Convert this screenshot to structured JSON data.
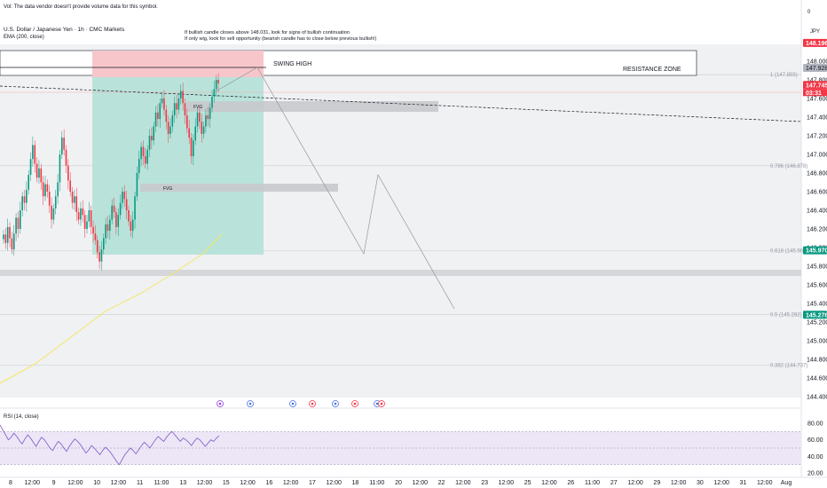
{
  "header": {
    "volume_notice": "Vol: The data vendor doesn't provide volume data for this symbol.",
    "symbol_title": "U.S. Dollar / Japanese Yen · 1h · CMC Markets",
    "ema_label": "EMA (200, close)",
    "note_line1": "If bullish candle closes above 148.031, look for signs of bullish continuation",
    "note_line2": "If only wig, look for sell opportunity (bearish candle has to close below previous bullish!)",
    "currency": "JPY",
    "top_axis_value": "0"
  },
  "annotations": {
    "swing_high": "SWING HIGH",
    "resistance_zone": "RESISTANCE ZONE",
    "fvg_upper": "FVG",
    "fvg_lower": "FVG"
  },
  "fib_levels": [
    {
      "label": "1 (147.855)",
      "price": 147.855
    },
    {
      "label": "0.786 (146.878)",
      "price": 146.878
    },
    {
      "label": "0.618 (145.969)",
      "price": 145.969
    },
    {
      "label": "0.5 (145.282)",
      "price": 145.282
    },
    {
      "label": "0.382 (144.737)",
      "price": 144.737
    }
  ],
  "price_tags": [
    {
      "text": "148.196",
      "price": 148.196,
      "color": "#f23645",
      "dark": false
    },
    {
      "text": "147.928",
      "price": 147.928,
      "color": "#b2b5be",
      "dark": true
    },
    {
      "text": "147.745",
      "price": 147.745,
      "color": "#f23645",
      "dark": false,
      "sub": "03:31"
    },
    {
      "text": "145.970",
      "price": 145.97,
      "color": "#089981",
      "dark": false
    },
    {
      "text": "145.278",
      "price": 145.278,
      "color": "#089981",
      "dark": false
    }
  ],
  "rsi": {
    "label": "RSI (14, close)",
    "ticks": [
      "80.00",
      "60.00",
      "40.00",
      "20.00"
    ],
    "levels": [
      80,
      60,
      40,
      20
    ],
    "upper_band": 70,
    "lower_band": 30,
    "values": [
      78,
      72,
      66,
      60,
      63,
      68,
      64,
      59,
      55,
      61,
      66,
      62,
      57,
      52,
      58,
      63,
      60,
      55,
      50,
      47,
      53,
      58,
      55,
      50,
      46,
      52,
      57,
      61,
      58,
      54,
      49,
      44,
      48,
      53,
      50,
      46,
      42,
      47,
      51,
      48,
      44,
      39,
      34,
      30,
      36,
      42,
      46,
      50,
      47,
      43,
      48,
      53,
      57,
      54,
      50,
      55,
      60,
      64,
      61,
      58,
      63,
      67,
      70,
      66,
      62,
      58,
      62,
      60,
      57,
      53,
      58,
      62,
      60,
      56,
      52,
      56,
      60,
      58,
      62,
      65
    ]
  },
  "chart_data": {
    "type": "candlestick",
    "title": "U.S. Dollar / Japanese Yen · 1h · CMC Markets",
    "ylabel": "JPY",
    "ylim": [
      144.25,
      148.45
    ],
    "price_ticks": [
      "148.000",
      "147.800",
      "147.600",
      "147.400",
      "147.200",
      "147.000",
      "146.800",
      "146.600",
      "146.400",
      "146.200",
      "146.000",
      "145.800",
      "145.600",
      "145.400",
      "145.200",
      "145.000",
      "144.800",
      "144.600",
      "144.400"
    ],
    "time_ticks": [
      "8",
      "12:00",
      "9",
      "12:00",
      "10",
      "12:00",
      "11",
      "11:00",
      "13",
      "12:00",
      "15",
      "12:00",
      "16",
      "12:00",
      "17",
      "12:00",
      "18",
      "11:00",
      "20",
      "12:00",
      "22",
      "12:00",
      "23",
      "12:00",
      "25",
      "12:00",
      "26",
      "11:00",
      "27",
      "12:00",
      "29",
      "12:00",
      "30",
      "12:00",
      "31",
      "12:00",
      "Aug"
    ],
    "ohlc_close": [
      146.14,
      146.05,
      146.22,
      146.1,
      145.98,
      146.15,
      146.32,
      146.2,
      146.4,
      146.55,
      146.48,
      146.62,
      146.78,
      146.95,
      147.1,
      146.9,
      146.75,
      146.85,
      146.7,
      146.55,
      146.68,
      146.6,
      146.45,
      146.3,
      146.42,
      146.55,
      146.7,
      147.0,
      147.18,
      147.05,
      146.88,
      146.72,
      146.6,
      146.48,
      146.55,
      146.38,
      146.3,
      146.42,
      146.35,
      146.2,
      146.28,
      146.4,
      146.22,
      146.15,
      146.08,
      145.95,
      145.85,
      145.98,
      146.1,
      146.25,
      146.18,
      146.3,
      146.45,
      146.38,
      146.22,
      146.35,
      146.48,
      146.6,
      146.52,
      146.4,
      146.28,
      146.18,
      146.3,
      146.55,
      146.8,
      146.95,
      147.08,
      146.98,
      146.9,
      147.05,
      147.2,
      147.15,
      147.3,
      147.45,
      147.38,
      147.55,
      147.6,
      147.48,
      147.35,
      147.22,
      147.3,
      147.42,
      147.55,
      147.48,
      147.6,
      147.68,
      147.55,
      147.42,
      147.28,
      147.18,
      146.98,
      147.15,
      147.3,
      147.45,
      147.35,
      147.22,
      147.3,
      147.42,
      147.38,
      147.5,
      147.62,
      147.7,
      147.8,
      147.76
    ]
  }
}
